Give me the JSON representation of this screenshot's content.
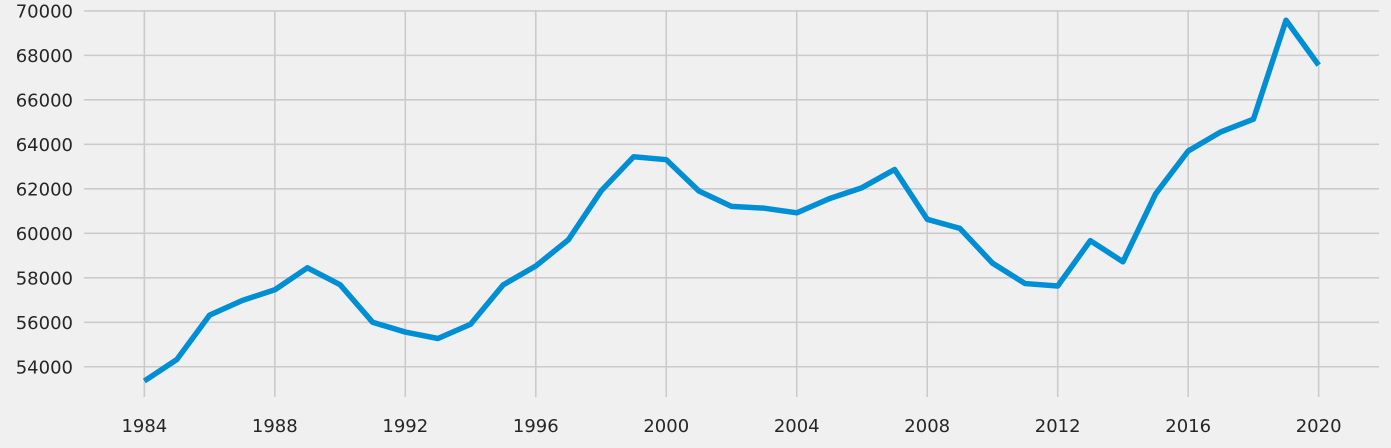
{
  "chart_data": {
    "type": "line",
    "title": "",
    "xlabel": "",
    "ylabel": "",
    "x": [
      1984,
      1985,
      1986,
      1987,
      1988,
      1989,
      1990,
      1991,
      1992,
      1993,
      1994,
      1995,
      1996,
      1997,
      1998,
      1999,
      2000,
      2001,
      2002,
      2003,
      2004,
      2005,
      2006,
      2007,
      2008,
      2009,
      2010,
      2011,
      2012,
      2013,
      2014,
      2015,
      2016,
      2017,
      2018,
      2019,
      2020
    ],
    "series": [
      {
        "name": "",
        "color": "#008fd5",
        "values": [
          53360,
          54330,
          56320,
          56980,
          57460,
          58450,
          57690,
          56000,
          55560,
          55270,
          55910,
          57680,
          58530,
          59710,
          61900,
          63440,
          63310,
          61900,
          61210,
          61130,
          60920,
          61560,
          62050,
          62870,
          60630,
          60220,
          58660,
          57740,
          57630,
          59670,
          58720,
          61770,
          63700,
          64560,
          65130,
          69580,
          67560
        ]
      }
    ],
    "xlim": [
      1982.15,
      2021.85
    ],
    "ylim": [
      52640,
      70040
    ],
    "xticks": [
      1984,
      1988,
      1992,
      1996,
      2000,
      2004,
      2008,
      2012,
      2016,
      2020
    ],
    "yticks": [
      54000,
      56000,
      58000,
      60000,
      62000,
      64000,
      66000,
      68000,
      70000
    ],
    "xtick_labels": [
      "1984",
      "1988",
      "1992",
      "1996",
      "2000",
      "2004",
      "2008",
      "2012",
      "2016",
      "2020"
    ],
    "ytick_labels": [
      "54000",
      "56000",
      "58000",
      "60000",
      "62000",
      "64000",
      "66000",
      "68000",
      "70000"
    ],
    "grid": true,
    "legend": "none",
    "colors": {
      "background": "#f0f0f0",
      "grid": "#cbcbcb",
      "text": "#262626",
      "line": "#008fd5"
    }
  }
}
